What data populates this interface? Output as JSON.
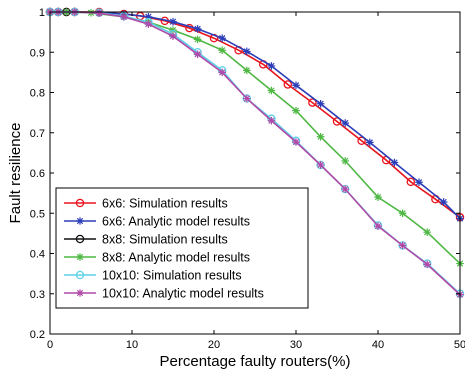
{
  "chart_data": {
    "type": "line",
    "title": "",
    "xlabel": "Percentage faulty routers(%)",
    "ylabel": "Fault resilience",
    "xlim": [
      0,
      50
    ],
    "ylim": [
      0.2,
      1.0
    ],
    "xticks": [
      "0",
      "10",
      "20",
      "30",
      "40",
      "50"
    ],
    "yticks": [
      "0.2",
      "0.3",
      "0.4",
      "0.5",
      "0.6",
      "0.7",
      "0.8",
      "0.9",
      "1"
    ],
    "grid": false,
    "legend_position": "bottom-left",
    "series": [
      {
        "name": "6x6: Simulation results",
        "color": "#e8141c",
        "marker": "circle",
        "x": [
          0,
          1,
          2,
          3,
          6,
          9,
          11,
          14,
          17,
          20,
          23,
          26,
          29,
          32,
          35,
          38,
          41,
          44,
          47,
          50
        ],
        "y": [
          1.0,
          1.0,
          1.0,
          1.0,
          1.0,
          0.995,
          0.99,
          0.978,
          0.96,
          0.935,
          0.905,
          0.87,
          0.82,
          0.775,
          0.728,
          0.68,
          0.632,
          0.578,
          0.535,
          0.49
        ]
      },
      {
        "name": "6x6: Analytic model results",
        "color": "#2b3eb8",
        "marker": "star",
        "x": [
          0,
          1,
          2,
          3,
          6,
          9,
          12,
          15,
          18,
          21,
          24,
          27,
          30,
          33,
          36,
          39,
          42,
          45,
          48,
          50
        ],
        "y": [
          1.0,
          1.0,
          1.0,
          1.0,
          0.999,
          0.995,
          0.988,
          0.976,
          0.958,
          0.935,
          0.902,
          0.866,
          0.818,
          0.772,
          0.724,
          0.676,
          0.626,
          0.577,
          0.528,
          0.487
        ]
      },
      {
        "name": "8x8: Simulation results",
        "color": "#111111",
        "marker": "circle",
        "x": [
          0,
          1,
          2,
          3
        ],
        "y": [
          1.0,
          1.0,
          1.0,
          1.0
        ]
      },
      {
        "name": "8x8: Analytic model results",
        "color": "#4fb844",
        "marker": "star",
        "x": [
          0,
          2,
          5,
          9,
          12,
          15,
          18,
          21,
          24,
          27,
          30,
          33,
          36,
          40,
          43,
          46,
          50
        ],
        "y": [
          1.0,
          1.0,
          0.998,
          0.988,
          0.975,
          0.955,
          0.932,
          0.905,
          0.855,
          0.805,
          0.755,
          0.69,
          0.63,
          0.54,
          0.5,
          0.453,
          0.375
        ]
      },
      {
        "name": "10x10: Simulation results",
        "color": "#5fd0e8",
        "marker": "circle",
        "x": [
          0,
          1,
          3,
          6,
          9,
          12,
          15,
          18,
          21,
          24,
          27,
          30,
          33,
          36,
          40,
          43,
          46,
          50
        ],
        "y": [
          1.0,
          1.0,
          1.0,
          0.998,
          0.99,
          0.975,
          0.945,
          0.9,
          0.855,
          0.785,
          0.735,
          0.68,
          0.62,
          0.56,
          0.47,
          0.42,
          0.375,
          0.3
        ]
      },
      {
        "name": "10x10: Analytic model results",
        "color": "#b04aa8",
        "marker": "star",
        "x": [
          0,
          1,
          3,
          6,
          9,
          12,
          15,
          18,
          21,
          24,
          27,
          30,
          33,
          36,
          40,
          43,
          46,
          50
        ],
        "y": [
          1.0,
          1.0,
          1.0,
          0.997,
          0.988,
          0.97,
          0.94,
          0.895,
          0.85,
          0.785,
          0.73,
          0.677,
          0.62,
          0.56,
          0.468,
          0.42,
          0.373,
          0.298
        ]
      }
    ]
  }
}
